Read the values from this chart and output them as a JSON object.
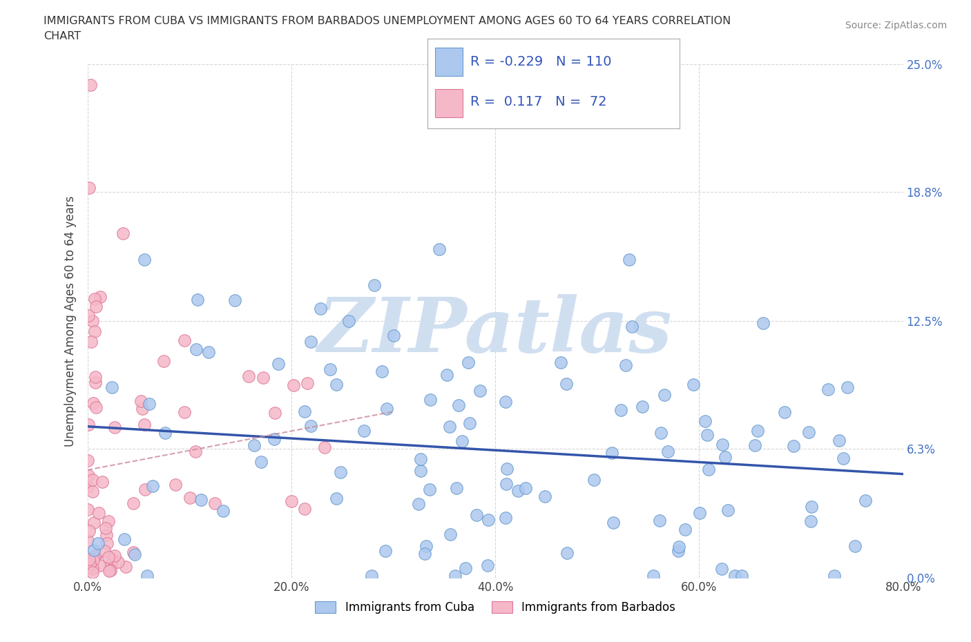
{
  "title_line1": "IMMIGRANTS FROM CUBA VS IMMIGRANTS FROM BARBADOS UNEMPLOYMENT AMONG AGES 60 TO 64 YEARS CORRELATION",
  "title_line2": "CHART",
  "source_text": "Source: ZipAtlas.com",
  "ylabel": "Unemployment Among Ages 60 to 64 years",
  "xlim": [
    0.0,
    0.8
  ],
  "ylim": [
    0.0,
    0.25
  ],
  "xticks": [
    0.0,
    0.2,
    0.4,
    0.6,
    0.8
  ],
  "xticklabels": [
    "0.0%",
    "20.0%",
    "40.0%",
    "60.0%",
    "80.0%"
  ],
  "ytick_values": [
    0.0,
    0.063,
    0.125,
    0.188,
    0.25
  ],
  "ytick_labels": [
    "0.0%",
    "6.3%",
    "12.5%",
    "18.8%",
    "25.0%"
  ],
  "cuba_color": "#adc8ef",
  "cuba_edge_color": "#6699cc",
  "barbados_color": "#f5b8c8",
  "barbados_edge_color": "#dd7799",
  "cuba_line_color": "#3355aa",
  "barbados_line_color": "#dd6688",
  "watermark_color": "#d0dff0",
  "watermark_text": "ZIPatlas",
  "legend_R_cuba": "-0.229",
  "legend_N_cuba": "110",
  "legend_R_barbados": "0.117",
  "legend_N_barbados": "72"
}
